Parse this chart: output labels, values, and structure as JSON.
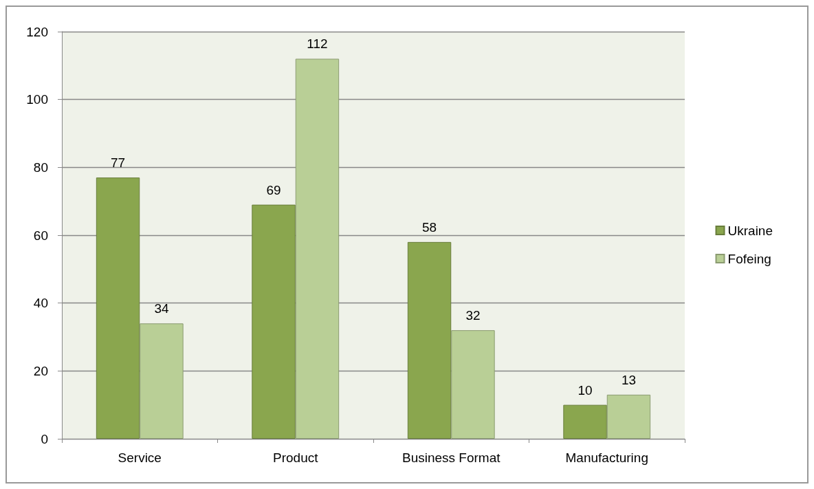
{
  "chart_data": {
    "type": "bar",
    "categories": [
      "Service",
      "Product",
      "Business Format",
      "Manufacturing"
    ],
    "series": [
      {
        "name": "Ukraine",
        "color": "#8aa64e",
        "values": [
          77,
          69,
          58,
          10
        ]
      },
      {
        "name": "Fofeing",
        "color": "#b9cf96",
        "values": [
          34,
          112,
          32,
          13
        ]
      }
    ],
    "ylim": [
      0,
      120
    ],
    "yticks": [
      0,
      20,
      40,
      60,
      80,
      100,
      120
    ],
    "grid": "y",
    "legend": "right",
    "data_labels": true
  }
}
